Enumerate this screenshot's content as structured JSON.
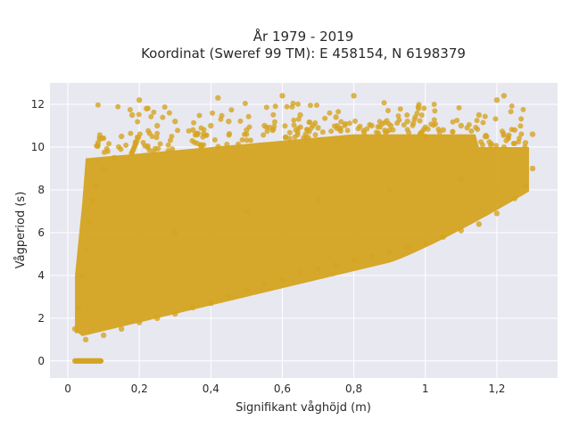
{
  "chart_data": {
    "type": "scatter",
    "title_lines": [
      "År 1979 - 2019",
      "Koordinat (Sweref 99 TM): E 458154, N 6198379"
    ],
    "xlabel": "Signifikant våghöjd (m)",
    "ylabel": "Vågperiod (s)",
    "xlim": [
      -0.05,
      1.37
    ],
    "ylim": [
      -0.8,
      13.0
    ],
    "x_ticks": [
      0,
      0.2,
      0.4,
      0.6,
      0.8,
      1.0,
      1.2
    ],
    "x_tick_labels": [
      "0",
      "0,2",
      "0,4",
      "0,6",
      "0,8",
      "1",
      "1,2"
    ],
    "y_ticks": [
      0,
      2,
      4,
      6,
      8,
      10,
      12
    ],
    "y_tick_labels": [
      "0",
      "2",
      "4",
      "6",
      "8",
      "10",
      "12"
    ],
    "grid": true,
    "legend": "none",
    "colors": {
      "marker": "#d4a420",
      "plot_bg": "#e8e8f1",
      "grid": "#ffffff"
    },
    "series": [
      {
        "points": [
          [
            0.02,
            0.0
          ],
          [
            0.03,
            0.0
          ],
          [
            0.04,
            0.0
          ],
          [
            0.05,
            0.0
          ],
          [
            0.06,
            0.0
          ],
          [
            0.07,
            0.0
          ],
          [
            0.08,
            0.0
          ],
          [
            0.09,
            0.0
          ],
          [
            0.02,
            1.5
          ],
          [
            0.03,
            2.5
          ],
          [
            0.04,
            4.0
          ],
          [
            0.05,
            5.2
          ],
          [
            0.06,
            6.5
          ],
          [
            0.07,
            7.5
          ],
          [
            0.08,
            8.2
          ],
          [
            0.1,
            9.0
          ],
          [
            0.13,
            9.5
          ],
          [
            0.15,
            10.5
          ],
          [
            0.18,
            11.5
          ],
          [
            0.2,
            12.2
          ],
          [
            0.22,
            11.8
          ],
          [
            0.25,
            11.0
          ],
          [
            0.3,
            11.2
          ],
          [
            0.35,
            10.8
          ],
          [
            0.4,
            11.0
          ],
          [
            0.42,
            12.3
          ],
          [
            0.45,
            11.2
          ],
          [
            0.5,
            10.8
          ],
          [
            0.55,
            11.0
          ],
          [
            0.6,
            12.4
          ],
          [
            0.65,
            11.5
          ],
          [
            0.7,
            10.9
          ],
          [
            0.75,
            11.4
          ],
          [
            0.8,
            12.4
          ],
          [
            0.85,
            11.0
          ],
          [
            0.9,
            10.8
          ],
          [
            0.95,
            11.2
          ],
          [
            1.0,
            10.5
          ],
          [
            1.05,
            10.8
          ],
          [
            1.1,
            11.0
          ],
          [
            1.15,
            11.5
          ],
          [
            1.2,
            12.2
          ],
          [
            1.22,
            12.4
          ],
          [
            1.25,
            10.8
          ],
          [
            1.28,
            10.2
          ],
          [
            1.3,
            10.6
          ],
          [
            0.05,
            1.0
          ],
          [
            0.1,
            1.2
          ],
          [
            0.15,
            1.5
          ],
          [
            0.2,
            1.8
          ],
          [
            0.25,
            2.0
          ],
          [
            0.3,
            2.2
          ],
          [
            0.35,
            2.5
          ],
          [
            0.4,
            2.7
          ],
          [
            0.45,
            3.0
          ],
          [
            0.5,
            3.3
          ],
          [
            0.55,
            3.6
          ],
          [
            0.6,
            3.8
          ],
          [
            0.65,
            4.1
          ],
          [
            0.7,
            4.3
          ],
          [
            0.75,
            4.5
          ],
          [
            0.8,
            4.7
          ],
          [
            0.85,
            4.9
          ],
          [
            0.9,
            5.1
          ],
          [
            0.95,
            5.3
          ],
          [
            1.0,
            5.5
          ],
          [
            1.05,
            5.8
          ],
          [
            1.1,
            6.1
          ],
          [
            1.15,
            6.4
          ],
          [
            1.2,
            6.9
          ],
          [
            1.25,
            7.6
          ],
          [
            1.28,
            8.2
          ],
          [
            1.3,
            9.0
          ],
          [
            0.3,
            6.0
          ],
          [
            0.5,
            7.0
          ],
          [
            0.7,
            7.5
          ],
          [
            0.9,
            8.0
          ],
          [
            1.1,
            8.5
          ]
        ]
      }
    ]
  }
}
